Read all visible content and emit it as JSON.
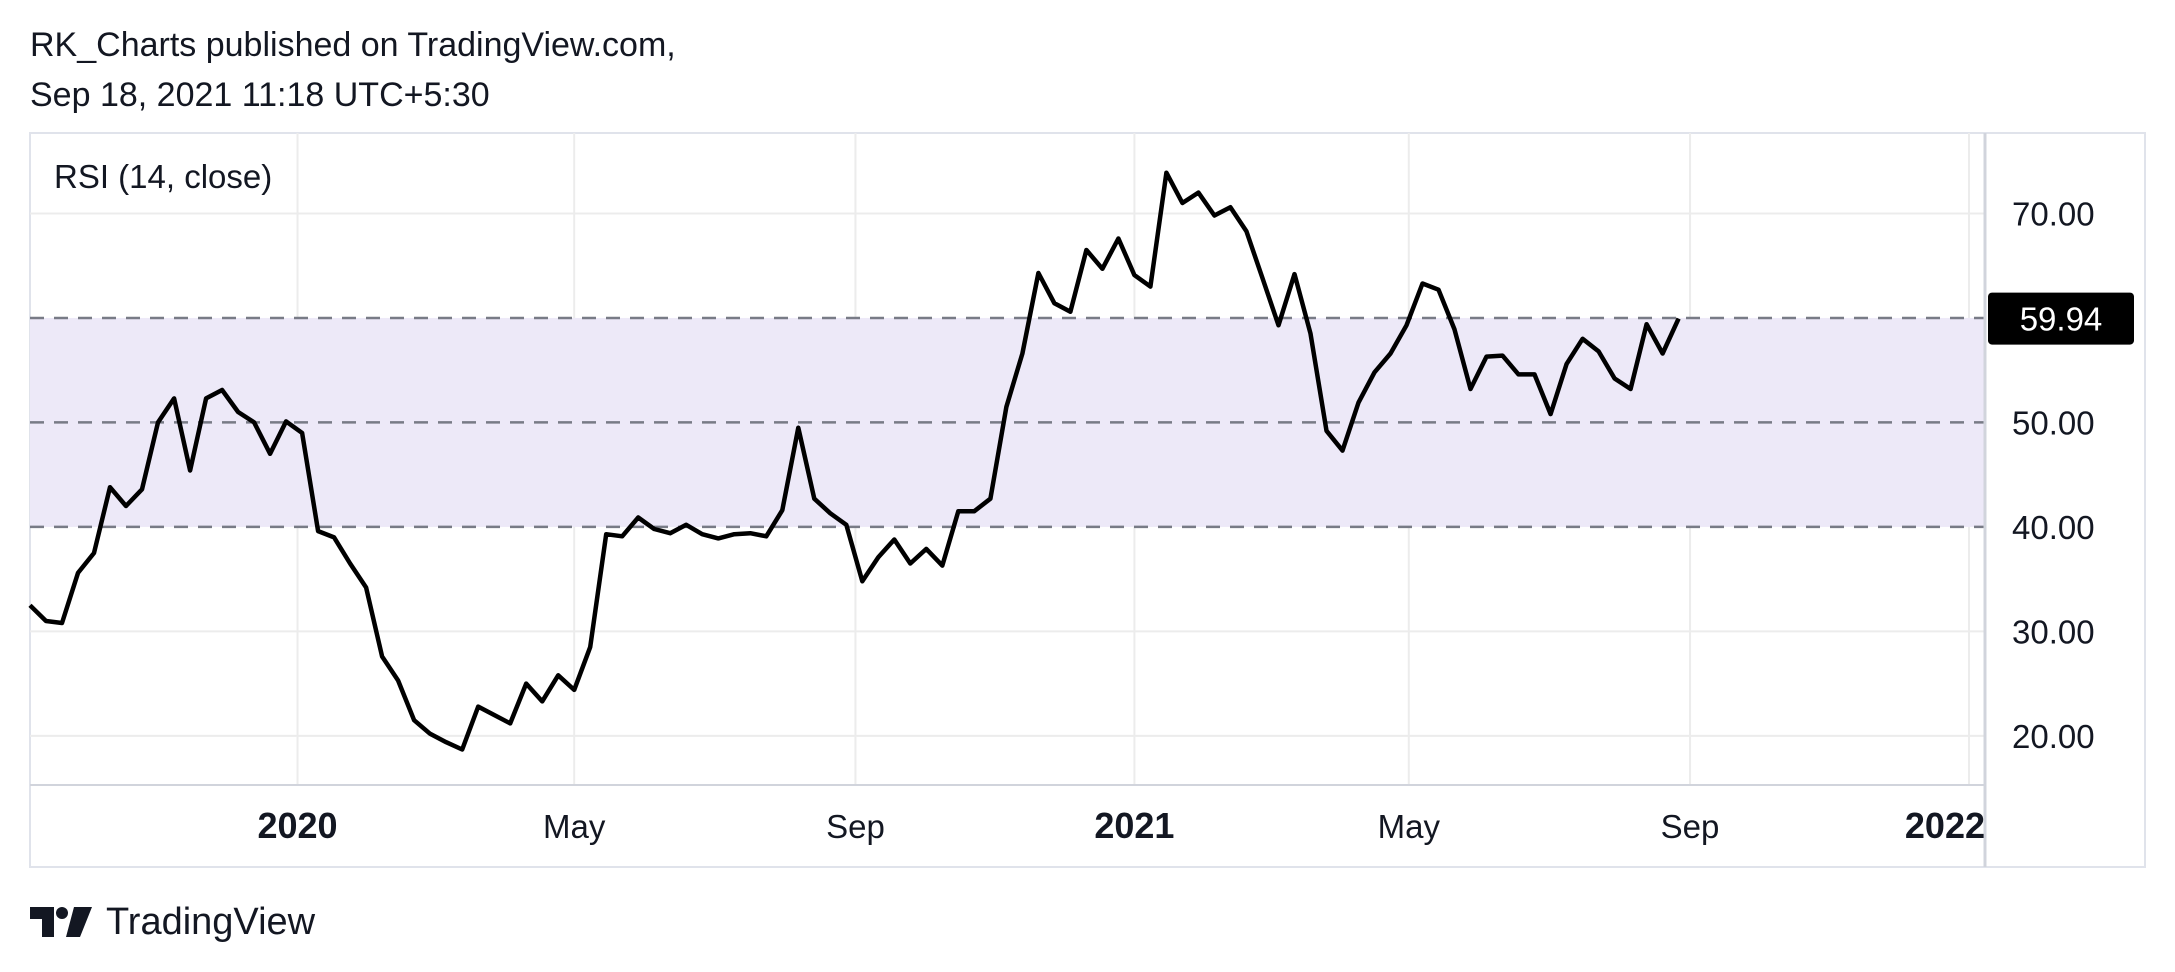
{
  "header": {
    "publisher_line": "RK_Charts published on TradingView.com,",
    "timestamp_line": "Sep 18, 2021 11:18 UTC+5:30"
  },
  "footer": {
    "brand": "TradingView",
    "logo_icon": "tradingview-logo-icon"
  },
  "colors": {
    "line": "#000000",
    "band_fill": "#ede9f8",
    "dashed_line": "#787b86",
    "grid": "#ececec",
    "badge_bg": "#000000",
    "badge_text": "#ffffff"
  },
  "chart_data": {
    "type": "line",
    "title": "RSI (14, close)",
    "series": [
      {
        "values": [
          [
            "2019-09-06",
            32.5
          ],
          [
            "2019-09-13",
            31.0
          ],
          [
            "2019-09-20",
            30.8
          ],
          [
            "2019-09-27",
            35.6
          ],
          [
            "2019-10-04",
            37.5
          ],
          [
            "2019-10-11",
            43.8
          ],
          [
            "2019-10-18",
            42.0
          ],
          [
            "2019-10-25",
            43.6
          ],
          [
            "2019-11-01",
            50.0
          ],
          [
            "2019-11-08",
            52.3
          ],
          [
            "2019-11-15",
            45.4
          ],
          [
            "2019-11-22",
            52.3
          ],
          [
            "2019-11-29",
            53.1
          ],
          [
            "2019-12-06",
            51.0
          ],
          [
            "2019-12-13",
            50.0
          ],
          [
            "2019-12-20",
            47.0
          ],
          [
            "2019-12-27",
            50.1
          ],
          [
            "2020-01-03",
            49.0
          ],
          [
            "2020-01-10",
            39.6
          ],
          [
            "2020-01-17",
            39.0
          ],
          [
            "2020-01-24",
            36.5
          ],
          [
            "2020-01-31",
            34.2
          ],
          [
            "2020-02-07",
            27.6
          ],
          [
            "2020-02-14",
            25.3
          ],
          [
            "2020-02-21",
            21.5
          ],
          [
            "2020-02-28",
            20.2
          ],
          [
            "2020-03-06",
            19.4
          ],
          [
            "2020-03-13",
            18.7
          ],
          [
            "2020-03-20",
            22.8
          ],
          [
            "2020-03-27",
            22.0
          ],
          [
            "2020-04-03",
            21.2
          ],
          [
            "2020-04-10",
            25.0
          ],
          [
            "2020-04-17",
            23.3
          ],
          [
            "2020-04-24",
            25.8
          ],
          [
            "2020-05-01",
            24.4
          ],
          [
            "2020-05-08",
            28.5
          ],
          [
            "2020-05-15",
            39.3
          ],
          [
            "2020-05-22",
            39.1
          ],
          [
            "2020-05-29",
            40.9
          ],
          [
            "2020-06-05",
            39.8
          ],
          [
            "2020-06-12",
            39.4
          ],
          [
            "2020-06-19",
            40.2
          ],
          [
            "2020-06-26",
            39.3
          ],
          [
            "2020-07-03",
            38.9
          ],
          [
            "2020-07-10",
            39.3
          ],
          [
            "2020-07-17",
            39.4
          ],
          [
            "2020-07-24",
            39.1
          ],
          [
            "2020-07-31",
            41.6
          ],
          [
            "2020-08-07",
            49.5
          ],
          [
            "2020-08-14",
            42.7
          ],
          [
            "2020-08-21",
            41.3
          ],
          [
            "2020-08-28",
            40.2
          ],
          [
            "2020-09-04",
            34.8
          ],
          [
            "2020-09-11",
            37.1
          ],
          [
            "2020-09-18",
            38.8
          ],
          [
            "2020-09-25",
            36.5
          ],
          [
            "2020-10-02",
            37.9
          ],
          [
            "2020-10-09",
            36.3
          ],
          [
            "2020-10-16",
            41.5
          ],
          [
            "2020-10-23",
            41.5
          ],
          [
            "2020-10-30",
            42.7
          ],
          [
            "2020-11-06",
            51.5
          ],
          [
            "2020-11-13",
            56.6
          ],
          [
            "2020-11-20",
            64.3
          ],
          [
            "2020-11-27",
            61.4
          ],
          [
            "2020-12-04",
            60.6
          ],
          [
            "2020-12-11",
            66.5
          ],
          [
            "2020-12-18",
            64.7
          ],
          [
            "2020-12-25",
            67.6
          ],
          [
            "2021-01-01",
            64.1
          ],
          [
            "2021-01-08",
            63.0
          ],
          [
            "2021-01-15",
            73.9
          ],
          [
            "2021-01-22",
            71.0
          ],
          [
            "2021-01-29",
            72.0
          ],
          [
            "2021-02-05",
            69.8
          ],
          [
            "2021-02-12",
            70.6
          ],
          [
            "2021-02-19",
            68.3
          ],
          [
            "2021-02-26",
            63.8
          ],
          [
            "2021-03-05",
            59.3
          ],
          [
            "2021-03-12",
            64.2
          ],
          [
            "2021-03-19",
            58.5
          ],
          [
            "2021-03-26",
            49.2
          ],
          [
            "2021-04-02",
            47.3
          ],
          [
            "2021-04-09",
            51.9
          ],
          [
            "2021-04-16",
            54.8
          ],
          [
            "2021-04-23",
            56.6
          ],
          [
            "2021-04-30",
            59.3
          ],
          [
            "2021-05-07",
            63.3
          ],
          [
            "2021-05-14",
            62.7
          ],
          [
            "2021-05-21",
            58.9
          ],
          [
            "2021-05-28",
            53.2
          ],
          [
            "2021-06-04",
            56.3
          ],
          [
            "2021-06-11",
            56.4
          ],
          [
            "2021-06-18",
            54.6
          ],
          [
            "2021-06-25",
            54.6
          ],
          [
            "2021-07-02",
            50.8
          ],
          [
            "2021-07-09",
            55.6
          ],
          [
            "2021-07-16",
            58.0
          ],
          [
            "2021-07-23",
            56.8
          ],
          [
            "2021-07-30",
            54.2
          ],
          [
            "2021-08-06",
            53.2
          ],
          [
            "2021-08-13",
            59.4
          ],
          [
            "2021-08-20",
            56.6
          ],
          [
            "2021-08-27",
            59.94
          ]
        ]
      }
    ],
    "x_ticks": [
      {
        "date": "2020-01-01",
        "label": "2020",
        "bold": true
      },
      {
        "date": "2020-05-01",
        "label": "May",
        "bold": false
      },
      {
        "date": "2020-09-01",
        "label": "Sep",
        "bold": false
      },
      {
        "date": "2021-01-01",
        "label": "2021",
        "bold": true
      },
      {
        "date": "2021-05-01",
        "label": "May",
        "bold": false
      },
      {
        "date": "2021-09-01",
        "label": "Sep",
        "bold": false
      },
      {
        "date": "2022-01-01",
        "label": "2022",
        "bold": true
      }
    ],
    "xlim": [
      "2019-09-06",
      "2022-01-08"
    ],
    "y_ticks": [
      {
        "value": 20,
        "label": "20.00"
      },
      {
        "value": 30,
        "label": "30.00"
      },
      {
        "value": 40,
        "label": "40.00"
      },
      {
        "value": 50,
        "label": "50.00"
      },
      {
        "value": 60,
        "label": "59.94"
      },
      {
        "value": 70,
        "label": "70.00"
      }
    ],
    "ylim": [
      15.3,
      77.7
    ],
    "band": {
      "lower": 40,
      "upper": 60,
      "middle": 50
    },
    "last_value": 59.94,
    "last_value_label": "59.94",
    "grid": true,
    "legend": "none"
  }
}
